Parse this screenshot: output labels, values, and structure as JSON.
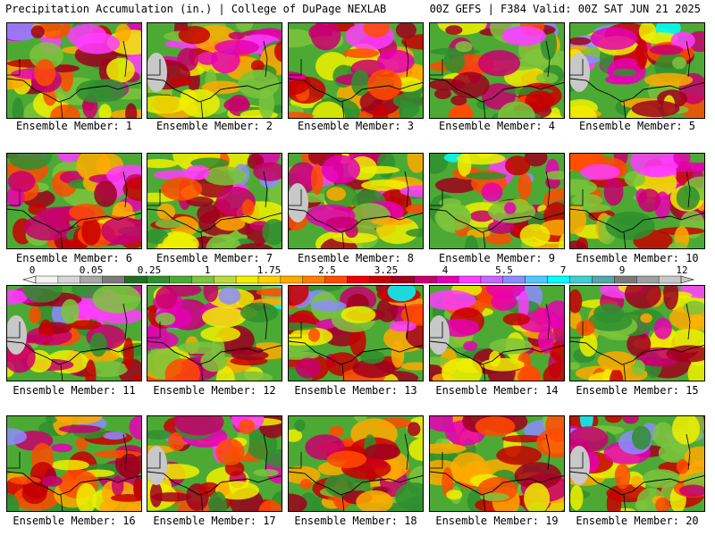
{
  "header": {
    "left": "Precipitation Accumulation (in.) | College of DuPage NEXLAB",
    "right": "00Z GEFS | F384 Valid: 00Z SAT JUN 21 2025"
  },
  "caption_prefix": "Ensemble Member: ",
  "members": [
    {
      "number": "1"
    },
    {
      "number": "2"
    },
    {
      "number": "3"
    },
    {
      "number": "4"
    },
    {
      "number": "5"
    },
    {
      "number": "6"
    },
    {
      "number": "7"
    },
    {
      "number": "8"
    },
    {
      "number": "9"
    },
    {
      "number": "10"
    },
    {
      "number": "11"
    },
    {
      "number": "12"
    },
    {
      "number": "13"
    },
    {
      "number": "14"
    },
    {
      "number": "15"
    },
    {
      "number": "16"
    },
    {
      "number": "17"
    },
    {
      "number": "18"
    },
    {
      "number": "19"
    },
    {
      "number": "20"
    }
  ],
  "colorbar": {
    "labels": [
      "0",
      "0.05",
      "0.25",
      "1",
      "1.75",
      "2.5",
      "3.25",
      "4",
      "5.5",
      "7",
      "9",
      "12"
    ],
    "colors": [
      "#f2f2f2",
      "#d6d6d6",
      "#a8a8a8",
      "#7a7a7a",
      "#1e6e1e",
      "#2f8f2f",
      "#4caa34",
      "#7cc43c",
      "#b8dc40",
      "#f0f000",
      "#ffd200",
      "#ffaa00",
      "#ff7d00",
      "#ff4b00",
      "#ee0000",
      "#c80000",
      "#a0001e",
      "#c8006e",
      "#e600b4",
      "#ff3cff",
      "#c864ff",
      "#8c8cff",
      "#50c8ff",
      "#00ffff",
      "#40d0d0",
      "#50aaaa",
      "#7a7a7a",
      "#a0a0a0",
      "#c8c8c8"
    ]
  }
}
